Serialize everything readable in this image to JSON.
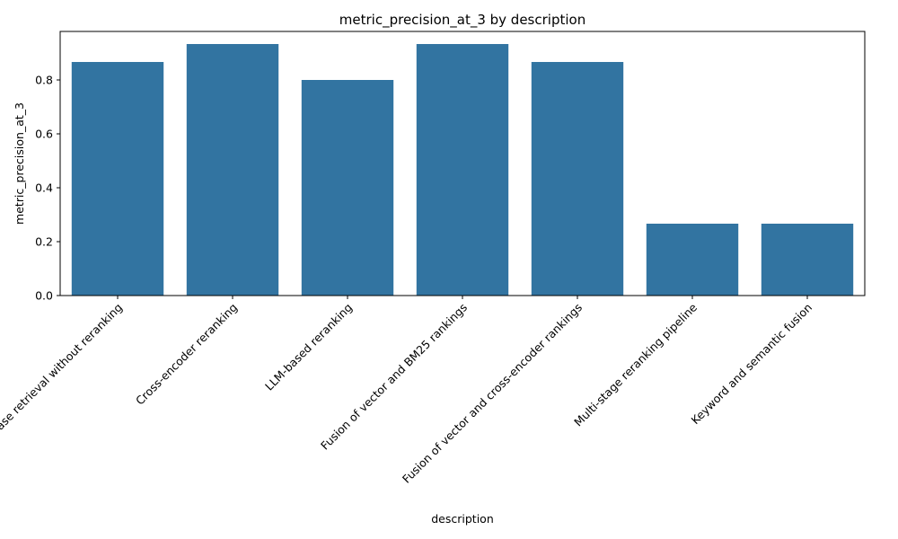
{
  "chart_data": {
    "type": "bar",
    "title": "metric_precision_at_3 by description",
    "xlabel": "description",
    "ylabel": "metric_precision_at_3",
    "categories": [
      "Base retrieval without reranking",
      "Cross-encoder reranking",
      "LLM-based reranking",
      "Fusion of vector and BM25 rankings",
      "Fusion of vector and cross-encoder rankings",
      "Multi-stage reranking pipeline",
      "Keyword and semantic fusion"
    ],
    "values": [
      0.8667,
      0.9333,
      0.8,
      0.9333,
      0.8667,
      0.2667,
      0.2667
    ],
    "ylim": [
      0,
      0.98
    ],
    "yticks": [
      0.0,
      0.2,
      0.4,
      0.6,
      0.8
    ],
    "ytick_labels": [
      "0.0",
      "0.2",
      "0.4",
      "0.6",
      "0.8"
    ],
    "bar_color": "#3274a1",
    "grid": false,
    "legend": "none"
  }
}
